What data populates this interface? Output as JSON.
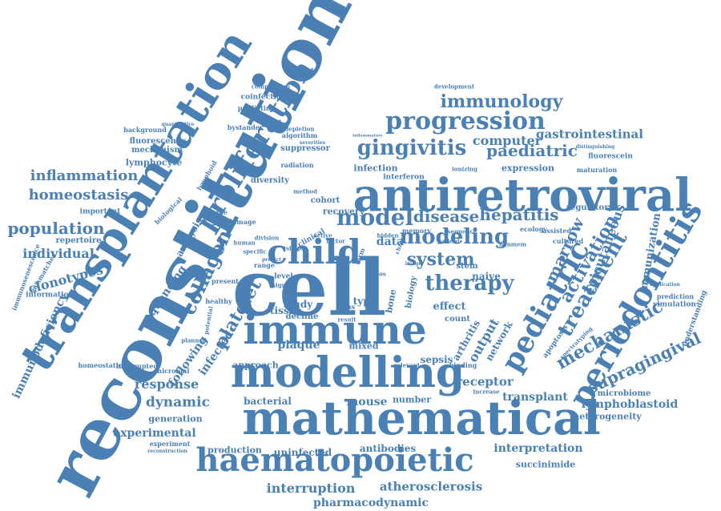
{
  "words": [
    {
      "text": "cell",
      "id": "cell"
    },
    {
      "text": "reconstitution",
      "id": "reconstitution"
    },
    {
      "text": "transplantation",
      "id": "transplantation"
    },
    {
      "text": "antiretroviral",
      "id": "antiretroviral"
    },
    {
      "text": "mathematical",
      "id": "mathematical"
    },
    {
      "text": "modelling",
      "id": "modelling"
    },
    {
      "text": "immune",
      "id": "immune"
    },
    {
      "text": "haematopoietic",
      "id": "haematopoietic"
    },
    {
      "text": "child",
      "id": "child"
    },
    {
      "text": "periodontitis",
      "id": "periodontitis"
    },
    {
      "text": "pediatric",
      "id": "pediatric"
    },
    {
      "text": "proliferation",
      "id": "proliferation"
    },
    {
      "text": "progression",
      "id": "progression"
    },
    {
      "text": "immunology",
      "id": "immunology"
    },
    {
      "text": "model",
      "id": "model"
    },
    {
      "text": "gingivitis",
      "id": "gingivitis"
    },
    {
      "text": "modeling",
      "id": "modeling"
    },
    {
      "text": "therapy",
      "id": "therapy"
    },
    {
      "text": "system",
      "id": "system"
    },
    {
      "text": "disease",
      "id": "disease"
    },
    {
      "text": "hepatitis",
      "id": "hepatitis"
    },
    {
      "text": "paediatric",
      "id": "paediatric"
    },
    {
      "text": "computer",
      "id": "computer"
    },
    {
      "text": "gastrointestinal",
      "id": "gastrointestinal"
    },
    {
      "text": "treatment",
      "id": "treatment"
    },
    {
      "text": "mechanistic",
      "id": "mechanistic"
    },
    {
      "text": "supragingival",
      "id": "supragingival"
    },
    {
      "text": "activation",
      "id": "activation"
    },
    {
      "text": "epicutaneous",
      "id": "epicutaneous"
    },
    {
      "text": "immunization",
      "id": "immunization"
    },
    {
      "text": "marrow",
      "id": "marrow"
    },
    {
      "text": "collagen",
      "id": "collagen"
    },
    {
      "text": "platelet",
      "id": "platelet"
    },
    {
      "text": "inflammation",
      "id": "inflammation"
    },
    {
      "text": "homeostasis",
      "id": "homeostasis"
    },
    {
      "text": "population",
      "id": "population"
    },
    {
      "text": "immunodeficiency",
      "id": "immunodeficiency"
    },
    {
      "text": "individual",
      "id": "individual"
    },
    {
      "text": "clonotypes",
      "id": "clonotypes"
    },
    {
      "text": "fluorescence",
      "id": "fluorescence"
    },
    {
      "text": "mechanism",
      "id": "mechanism"
    },
    {
      "text": "lymphocyte",
      "id": "lymphocyte"
    },
    {
      "text": "repertoire",
      "id": "repertoire"
    },
    {
      "text": "important",
      "id": "important"
    },
    {
      "text": "information",
      "id": "information"
    },
    {
      "text": "immunosenescence",
      "id": "immunosenescence"
    },
    {
      "text": "mismatches",
      "id": "mismatches"
    },
    {
      "text": "background",
      "id": "background"
    },
    {
      "text": "quantitative",
      "id": "quantitative"
    },
    {
      "text": "sequencing",
      "id": "sequencing"
    },
    {
      "text": "analysis",
      "id": "analysis"
    },
    {
      "text": "following",
      "id": "following"
    },
    {
      "text": "infected",
      "id": "infected"
    },
    {
      "text": "tissue",
      "id": "tissue"
    },
    {
      "text": "data",
      "id": "data"
    },
    {
      "text": "recovery",
      "id": "recovery"
    },
    {
      "text": "infection",
      "id": "infection"
    },
    {
      "text": "naive",
      "id": "naive"
    },
    {
      "text": "stem",
      "id": "stem"
    },
    {
      "text": "effect",
      "id": "effect"
    },
    {
      "text": "count",
      "id": "count"
    },
    {
      "text": "output",
      "id": "output"
    },
    {
      "text": "network",
      "id": "network"
    },
    {
      "text": "arthritis",
      "id": "arthritis"
    },
    {
      "text": "biology",
      "id": "biology"
    },
    {
      "text": "study",
      "id": "study"
    },
    {
      "text": "decline",
      "id": "decline"
    },
    {
      "text": "type",
      "id": "type"
    },
    {
      "text": "bone",
      "id": "bone"
    },
    {
      "text": "plaque",
      "id": "plaque"
    },
    {
      "text": "mixed",
      "id": "mixed"
    },
    {
      "text": "sepsis",
      "id": "sepsis"
    },
    {
      "text": "approach",
      "id": "approach"
    },
    {
      "text": "response",
      "id": "response"
    },
    {
      "text": "dynamic",
      "id": "dynamic"
    },
    {
      "text": "bacterial",
      "id": "bacterial"
    },
    {
      "text": "mouse",
      "id": "mouse"
    },
    {
      "text": "number",
      "id": "number"
    },
    {
      "text": "receptor",
      "id": "receptor"
    },
    {
      "text": "transplant",
      "id": "transplant"
    },
    {
      "text": "lymphoblastoid",
      "id": "lymphoblastoid"
    },
    {
      "text": "heterogeneity",
      "id": "heterogeneity"
    },
    {
      "text": "microbiome",
      "id": "microbiome"
    },
    {
      "text": "generation",
      "id": "generation"
    },
    {
      "text": "experimental",
      "id": "experimental"
    },
    {
      "text": "experiment",
      "id": "experiment"
    },
    {
      "text": "reconstruction",
      "id": "reconstruction"
    },
    {
      "text": "production",
      "id": "production"
    },
    {
      "text": "uninfected",
      "id": "uninfected"
    },
    {
      "text": "antibodies",
      "id": "antibodies"
    },
    {
      "text": "interpretation",
      "id": "interpretation"
    },
    {
      "text": "succinimide",
      "id": "succinimide"
    },
    {
      "text": "interruption",
      "id": "interruption"
    },
    {
      "text": "atherosclerosis",
      "id": "atherosclerosis"
    },
    {
      "text": "pharmacodynamic",
      "id": "pharmacodynamic"
    },
    {
      "text": "suppressor",
      "id": "suppressor"
    },
    {
      "text": "radiation",
      "id": "radiation"
    },
    {
      "text": "diversity",
      "id": "diversity"
    },
    {
      "text": "cohort",
      "id": "cohort"
    },
    {
      "text": "interferon",
      "id": "interferon"
    },
    {
      "text": "ionizing",
      "id": "ionizing"
    },
    {
      "text": "expression",
      "id": "expression"
    },
    {
      "text": "maturation",
      "id": "maturation"
    },
    {
      "text": "fluorescein",
      "id": "fluorescein"
    },
    {
      "text": "distinguishing",
      "id": "distinguishing"
    },
    {
      "text": "regulatory",
      "id": "regulatory"
    },
    {
      "text": "ecology",
      "id": "ecology"
    },
    {
      "text": "assisted",
      "id": "assisted"
    },
    {
      "text": "cultured",
      "id": "cultured"
    },
    {
      "text": "nonmem",
      "id": "nonmem"
    },
    {
      "text": "prediction",
      "id": "prediction"
    },
    {
      "text": "simulation",
      "id": "simulation"
    },
    {
      "text": "understanding",
      "id": "understanding"
    },
    {
      "text": "application",
      "id": "application"
    },
    {
      "text": "apoptosis",
      "id": "apoptosis"
    },
    {
      "text": "spectratyping",
      "id": "spectratyping"
    },
    {
      "text": "development",
      "id": "development"
    },
    {
      "text": "composition",
      "id": "composition"
    },
    {
      "text": "coinfection",
      "id": "coinfection"
    },
    {
      "text": "predicting",
      "id": "predicting"
    },
    {
      "text": "bystander",
      "id": "bystander"
    },
    {
      "text": "depletion",
      "id": "depletion"
    },
    {
      "text": "algorithm",
      "id": "algorithm"
    },
    {
      "text": "severities",
      "id": "severities"
    },
    {
      "text": "lymphoid",
      "id": "lymphoid"
    },
    {
      "text": "homeostatic",
      "id": "homeostatic"
    },
    {
      "text": "interrupted",
      "id": "interrupted"
    },
    {
      "text": "microbial",
      "id": "microbial"
    },
    {
      "text": "planned",
      "id": "planned"
    },
    {
      "text": "cd40/cd40l",
      "id": "cd40-cd40l"
    },
    {
      "text": "healthy",
      "id": "healthy"
    },
    {
      "text": "present",
      "id": "present"
    },
    {
      "text": "level",
      "id": "level"
    },
    {
      "text": "signal",
      "id": "signal"
    },
    {
      "text": "simple",
      "id": "simple"
    },
    {
      "text": "sample",
      "id": "sample"
    },
    {
      "text": "damage",
      "id": "damage"
    },
    {
      "text": "biological",
      "id": "biological"
    },
    {
      "text": "increase",
      "id": "increase"
    },
    {
      "text": "binding",
      "id": "binding"
    },
    {
      "text": "memory",
      "id": "memory"
    },
    {
      "text": "sequence",
      "id": "sequence"
    },
    {
      "text": "patient",
      "id": "patient"
    },
    {
      "text": "range",
      "id": "range"
    },
    {
      "text": "result",
      "id": "result"
    },
    {
      "text": "virus",
      "id": "virus"
    },
    {
      "text": "relevant",
      "id": "relevant"
    },
    {
      "text": "method",
      "id": "method"
    },
    {
      "text": "division",
      "id": "division"
    },
    {
      "text": "specific",
      "id": "specific"
    },
    {
      "text": "human",
      "id": "human"
    },
    {
      "text": "predict",
      "id": "predict"
    },
    {
      "text": "clinical",
      "id": "clinical"
    },
    {
      "text": "potential",
      "id": "potential"
    },
    {
      "text": "factor",
      "id": "factor"
    },
    {
      "text": "active",
      "id": "active"
    },
    {
      "text": "term",
      "id": "term"
    },
    {
      "text": "kreos",
      "id": "kreos"
    },
    {
      "text": "hidden",
      "id": "hidden"
    },
    {
      "text": "inflammatory",
      "id": "inflammatory"
    },
    {
      "text": "chronic",
      "id": "chronic"
    },
    {
      "text": "image",
      "id": "image"
    }
  ]
}
